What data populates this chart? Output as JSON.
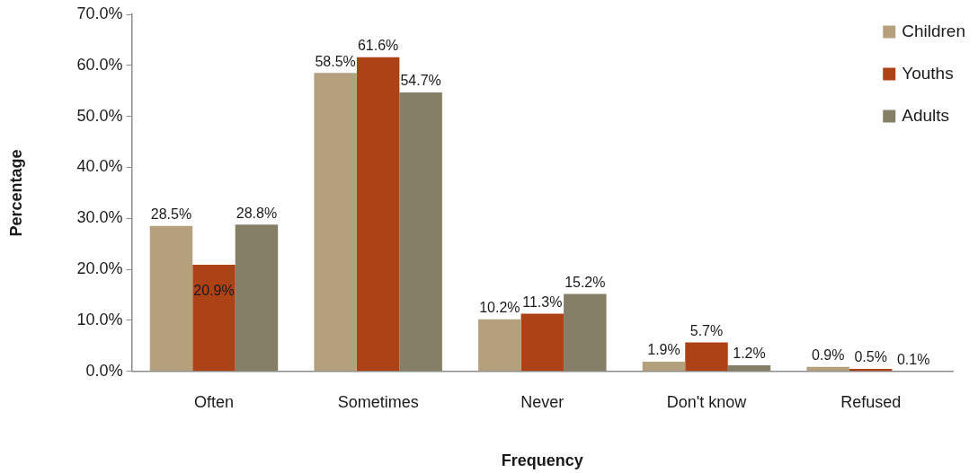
{
  "chart_data": {
    "type": "bar",
    "xlabel": "Frequency",
    "ylabel": "Percentage",
    "categories": [
      "Often",
      "Sometimes",
      "Never",
      "Don't know",
      "Refused"
    ],
    "series": [
      {
        "name": "Children",
        "color": "#b5a07e",
        "values": [
          28.5,
          58.5,
          10.2,
          1.9,
          0.9
        ],
        "value_labels": [
          "28.5%",
          "58.5%",
          "10.2%",
          "1.9%",
          "0.9%"
        ]
      },
      {
        "name": "Youths",
        "color": "#ae4217",
        "values": [
          20.9,
          61.6,
          11.3,
          5.7,
          0.5
        ],
        "value_labels": [
          "20.9%",
          "61.6%",
          "11.3%",
          "5.7%",
          "0.5%"
        ]
      },
      {
        "name": "Adults",
        "color": "#857f68",
        "values": [
          28.8,
          54.7,
          15.2,
          1.2,
          0.1
        ],
        "value_labels": [
          "28.8%",
          "54.7%",
          "15.2%",
          "1.2%",
          "0.1%"
        ]
      }
    ],
    "ylim": [
      0,
      70
    ],
    "yticks": [
      {
        "value": 0,
        "label": "0.0%"
      },
      {
        "value": 10,
        "label": "10.0%"
      },
      {
        "value": 20,
        "label": "20.0%"
      },
      {
        "value": 30,
        "label": "30.0%"
      },
      {
        "value": 40,
        "label": "40.0%"
      },
      {
        "value": 50,
        "label": "50.0%"
      },
      {
        "value": 60,
        "label": "60.0%"
      },
      {
        "value": 70,
        "label": "70.0%"
      }
    ],
    "grid": false,
    "legend": "top right"
  }
}
